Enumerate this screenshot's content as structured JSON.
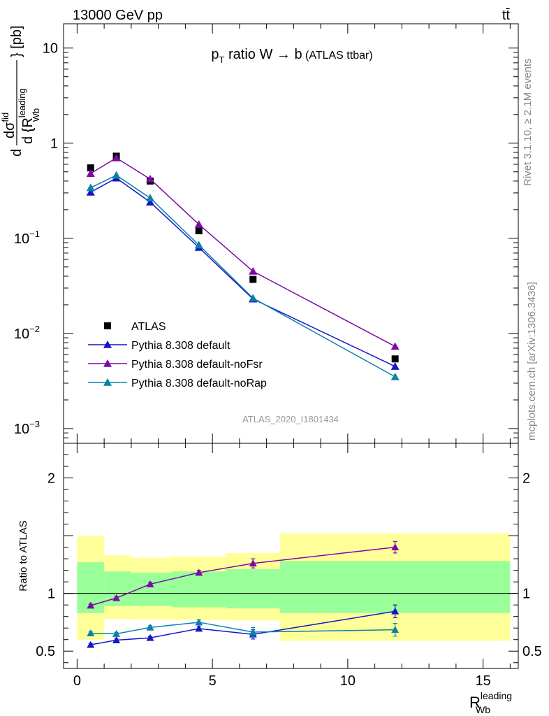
{
  "header": {
    "energy_label": "13000 GeV pp",
    "process_label": "tt̄"
  },
  "side_labels": {
    "rivet": "Rivet 3.1.10, ≥ 2.1M events",
    "mcplots": "mcplots.cern.ch [arXiv:1306.3436]"
  },
  "chart_data": [
    {
      "type": "scatter",
      "panel": "main",
      "title": "p_T ratio W → b (ATLAS ttbar)",
      "title_parts": {
        "p": "p",
        "sub": "T",
        "rest": " ratio W",
        "arrow": " → ",
        "b": "b",
        "small": " (ATLAS ttbar)"
      },
      "watermark": "ATLAS_2020_I1801434",
      "ylabel_parts": {
        "d1": "d",
        "num": "dσ",
        "numsup": "fid",
        "den": "d {R",
        "densup": "leading",
        "densub": "Wb",
        "unit": "} [pb]"
      },
      "yscale": "log",
      "ylim": [
        0.0007,
        18
      ],
      "xlim": [
        -0.5,
        16.3
      ],
      "y_tick_labels": [
        {
          "value": 10,
          "label": "10",
          "exp": ""
        },
        {
          "value": 1,
          "label": "1",
          "exp": ""
        },
        {
          "value": 0.1,
          "label": "10",
          "exp": "−1"
        },
        {
          "value": 0.01,
          "label": "10",
          "exp": "−2"
        },
        {
          "value": 0.001,
          "label": "10",
          "exp": "−3"
        }
      ],
      "legend_position": "bottom-left",
      "series": [
        {
          "name": "ATLAS",
          "color": "#000000",
          "marker": "square",
          "line": false,
          "x": [
            0.5,
            1.45,
            2.7,
            4.5,
            6.5,
            11.75
          ],
          "y": [
            0.55,
            0.73,
            0.4,
            0.12,
            0.037,
            0.0054
          ]
        },
        {
          "name": "Pythia 8.308 default",
          "color": "#1515c8",
          "marker": "triangle",
          "line": true,
          "x": [
            0.5,
            1.45,
            2.7,
            4.5,
            6.5,
            11.75
          ],
          "y": [
            0.305,
            0.43,
            0.24,
            0.08,
            0.023,
            0.0045
          ]
        },
        {
          "name": "Pythia 8.308 default-noFsr",
          "color": "#7b0aa8",
          "marker": "triangle",
          "line": true,
          "x": [
            0.5,
            1.45,
            2.7,
            4.5,
            6.5,
            11.75
          ],
          "y": [
            0.48,
            0.7,
            0.42,
            0.14,
            0.045,
            0.0073
          ]
        },
        {
          "name": "Pythia 8.308 default-noRap",
          "color": "#0a82a8",
          "marker": "triangle",
          "line": true,
          "x": [
            0.5,
            1.45,
            2.7,
            4.5,
            6.5,
            11.75
          ],
          "y": [
            0.34,
            0.46,
            0.265,
            0.085,
            0.0235,
            0.0035
          ]
        }
      ]
    },
    {
      "type": "line",
      "panel": "ratio",
      "ylabel": "Ratio to ATLAS",
      "ylim": [
        0.35,
        2.3
      ],
      "xlim": [
        -0.5,
        16.3
      ],
      "xlabel_parts": {
        "main": "R",
        "sup": "leading",
        "sub": "Wb"
      },
      "x_tick_labels": [
        0,
        5,
        10,
        15
      ],
      "y_tick_labels": [
        0.5,
        1,
        2
      ],
      "reference_line": 1,
      "bands": {
        "edges": [
          0,
          1,
          2,
          3.5,
          5.5,
          7.5,
          16
        ],
        "outer_color": "#ffff99",
        "inner_color": "#99ff99",
        "yellow_low": [
          0.6,
          0.78,
          0.775,
          0.77,
          0.765,
          0.59
        ],
        "yellow_high": [
          1.5,
          1.33,
          1.31,
          1.32,
          1.35,
          1.52
        ],
        "green_low": [
          0.83,
          0.89,
          0.89,
          0.88,
          0.87,
          0.83
        ],
        "green_high": [
          1.27,
          1.19,
          1.18,
          1.19,
          1.21,
          1.28
        ]
      },
      "series": [
        {
          "name": "Pythia 8.308 default",
          "color": "#1515c8",
          "x": [
            0.5,
            1.45,
            2.7,
            4.5,
            6.5,
            11.75
          ],
          "y": [
            0.555,
            0.595,
            0.615,
            0.695,
            0.645,
            0.845
          ],
          "err": [
            0.012,
            0.012,
            0.012,
            0.02,
            0.04,
            0.055
          ]
        },
        {
          "name": "Pythia 8.308 default-noFsr",
          "color": "#7b0aa8",
          "x": [
            0.5,
            1.45,
            2.7,
            4.5,
            6.5,
            11.75
          ],
          "y": [
            0.895,
            0.96,
            1.08,
            1.18,
            1.26,
            1.4
          ],
          "err": [
            0.012,
            0.012,
            0.015,
            0.02,
            0.04,
            0.05
          ]
        },
        {
          "name": "Pythia 8.308 default-noRap",
          "color": "#0a82a8",
          "x": [
            0.5,
            1.45,
            2.7,
            4.5,
            6.5,
            11.75
          ],
          "y": [
            0.655,
            0.65,
            0.705,
            0.75,
            0.665,
            0.685
          ],
          "err": [
            0.012,
            0.012,
            0.015,
            0.02,
            0.04,
            0.055
          ]
        }
      ]
    }
  ]
}
